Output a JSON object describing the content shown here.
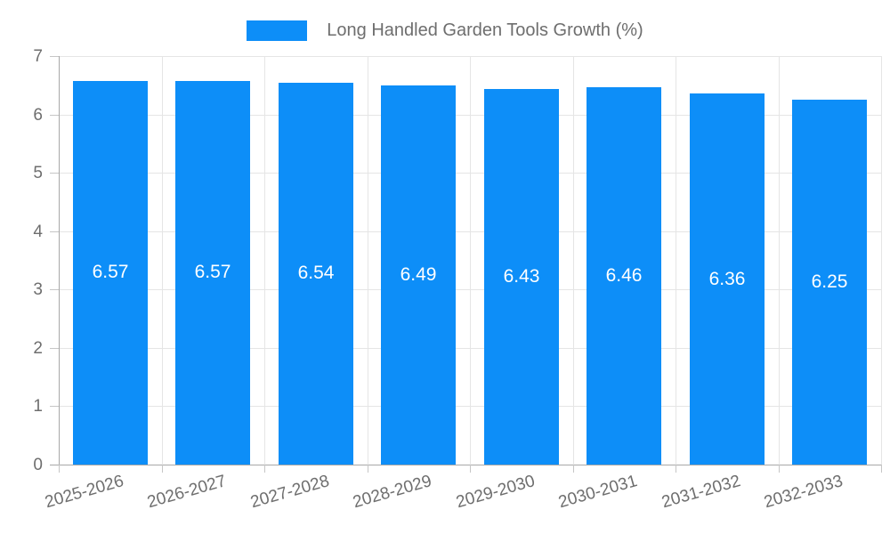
{
  "legend": {
    "label": "Long Handled Garden Tools Growth (%)"
  },
  "colors": {
    "bar": "#0d8ef8",
    "axis": "#a8a8a8",
    "grid": "#e5e5e5",
    "tick": "#c6c6c6",
    "text": "#6e6e6e",
    "value_label": "#ffffff",
    "background": "#ffffff"
  },
  "chart_data": {
    "type": "bar",
    "title": "Long Handled Garden Tools Growth (%)",
    "categories": [
      "2025-2026",
      "2026-2027",
      "2027-2028",
      "2028-2029",
      "2029-2030",
      "2030-2031",
      "2031-2032",
      "2032-2033"
    ],
    "values": [
      6.57,
      6.57,
      6.54,
      6.49,
      6.43,
      6.46,
      6.36,
      6.25
    ],
    "value_labels": [
      "6.57",
      "6.57",
      "6.54",
      "6.49",
      "6.43",
      "6.46",
      "6.36",
      "6.25"
    ],
    "xlabel": "",
    "ylabel": "",
    "ylim": [
      0,
      7
    ],
    "ytick_step": 1,
    "yticks": [
      "0",
      "1",
      "2",
      "3",
      "4",
      "5",
      "6",
      "7"
    ],
    "grid": true,
    "legend_position": "top",
    "value_labels_inside_bars": true,
    "x_label_rotation_deg": -16
  }
}
